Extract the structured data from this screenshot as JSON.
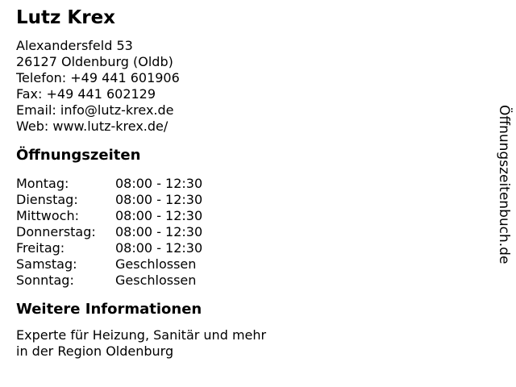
{
  "business": {
    "name": "Lutz Krex",
    "contact_lines": [
      "Alexandersfeld 53",
      "26127 Oldenburg (Oldb)",
      "Telefon: +49 441 601906",
      "Fax: +49 441 602129",
      "Email: info@lutz-krex.de",
      "Web: www.lutz-krex.de/"
    ]
  },
  "sections": {
    "opening_hours": {
      "title": "Öffnungszeiten",
      "rows": [
        {
          "day": "Montag:",
          "value": "08:00 - 12:30"
        },
        {
          "day": "Dienstag:",
          "value": "08:00 - 12:30"
        },
        {
          "day": "Mittwoch:",
          "value": "08:00 - 12:30"
        },
        {
          "day": "Donnerstag:",
          "value": "08:00 - 12:30"
        },
        {
          "day": "Freitag:",
          "value": "08:00 - 12:30"
        },
        {
          "day": "Samstag:",
          "value": "Geschlossen"
        },
        {
          "day": "Sonntag:",
          "value": "Geschlossen"
        }
      ]
    },
    "more_info": {
      "title": "Weitere Informationen",
      "lines": [
        "Experte für Heizung, Sanitär und mehr",
        "in der Region Oldenburg"
      ]
    }
  },
  "watermark": {
    "text": "Öffnungszeitenbuch.de"
  },
  "colors": {
    "text": "#000000",
    "background": "#ffffff"
  }
}
